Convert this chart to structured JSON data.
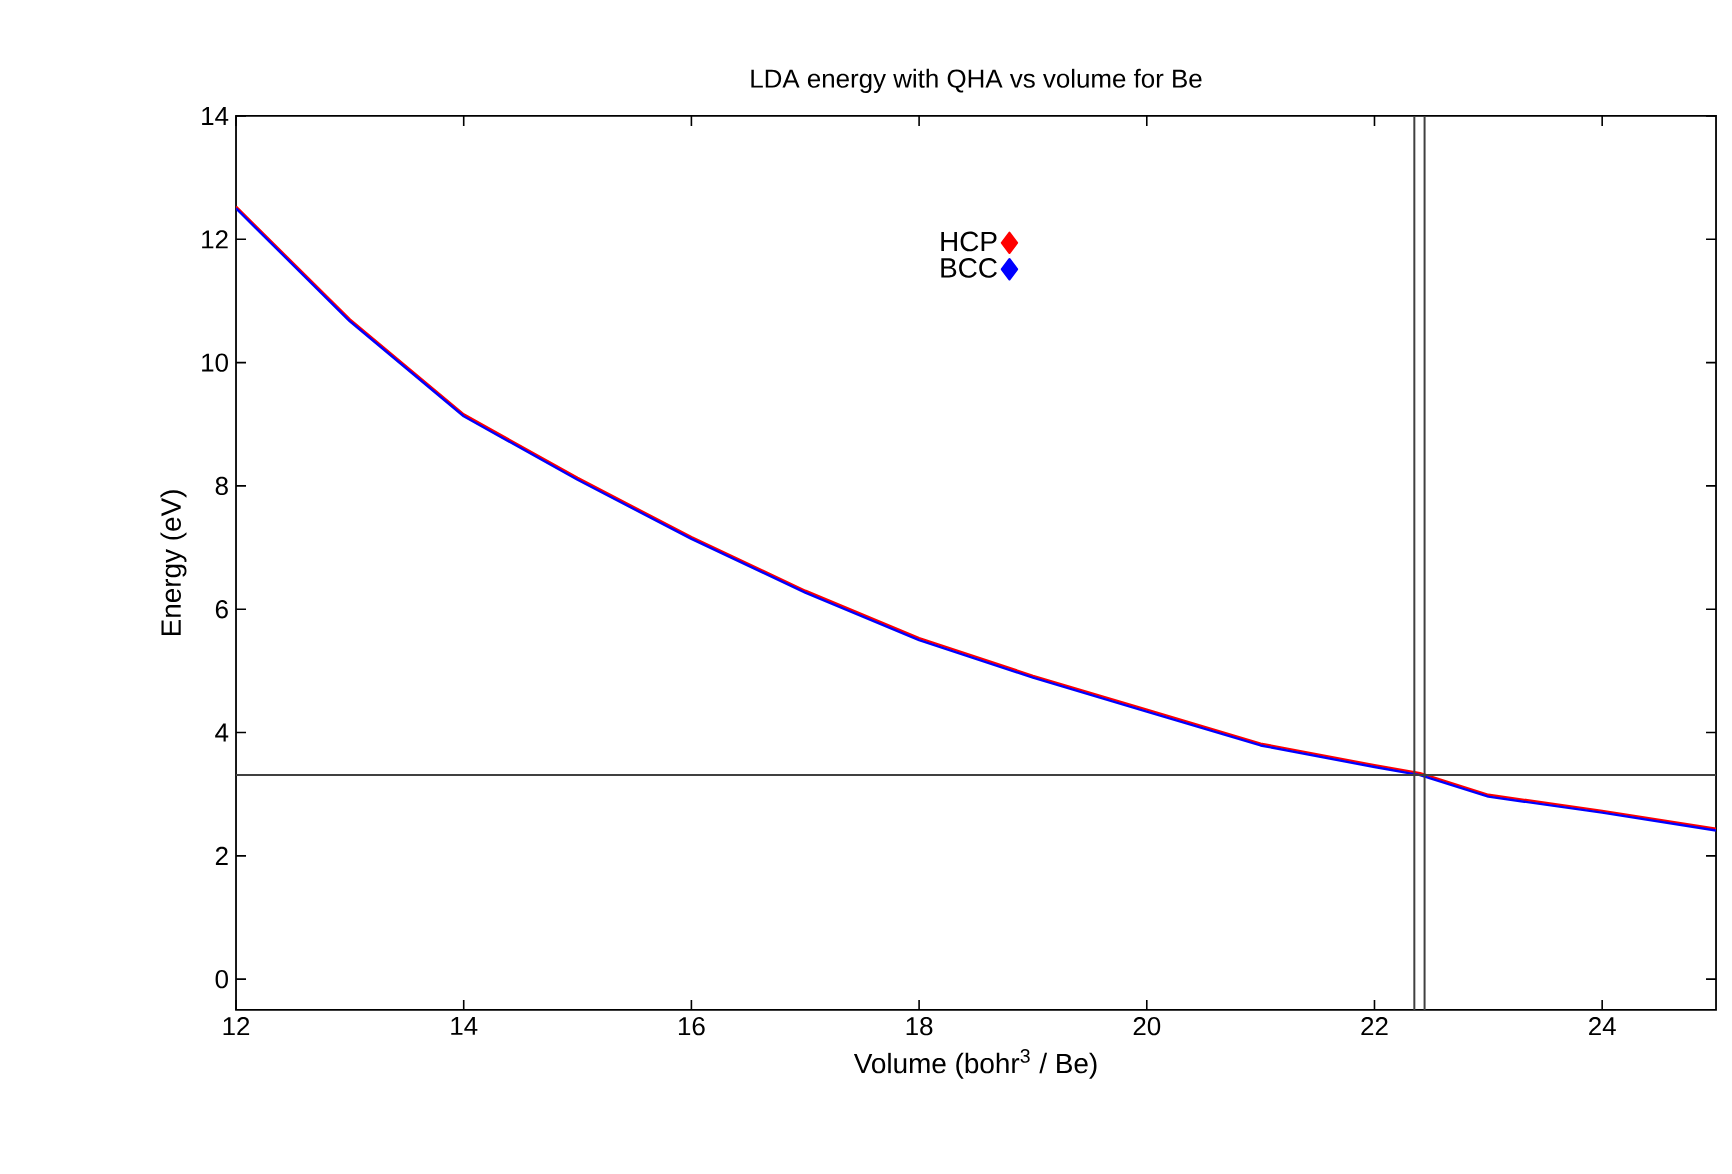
{
  "chart_data": {
    "type": "line",
    "title": "LDA energy with QHA vs volume for Be",
    "xlabel": "Volume (bohr$^{3}$ / Be)",
    "ylabel": "Energy (eV)",
    "x": [
      12,
      13,
      14,
      15,
      16,
      17,
      18,
      19,
      20,
      21,
      22,
      22.4,
      23,
      24,
      25
    ],
    "series": [
      {
        "name": "HCP",
        "color": "#ff0000",
        "values": [
          12.53,
          10.7,
          9.16,
          8.13,
          7.17,
          6.3,
          5.53,
          4.92,
          4.37,
          3.82,
          3.47,
          3.34,
          2.99,
          2.73,
          2.44
        ]
      },
      {
        "name": "BCC",
        "color": "#0000ff",
        "values": [
          12.5,
          10.67,
          9.13,
          8.1,
          7.14,
          6.27,
          5.5,
          4.89,
          4.34,
          3.79,
          3.44,
          3.31,
          2.96,
          2.7,
          2.41
        ]
      }
    ],
    "xlim": [
      12,
      25
    ],
    "xticks": [
      12,
      14,
      16,
      18,
      20,
      22,
      24
    ],
    "ylim": [
      -0.5,
      14
    ],
    "yticks": [
      0,
      2,
      4,
      6,
      8,
      10,
      12,
      14
    ],
    "ref_lines": [
      {
        "axis": "y",
        "value": 3.31,
        "color": "#404040"
      },
      {
        "axis": "x",
        "value": 22.35,
        "color": "#404040"
      },
      {
        "axis": "x",
        "value": 22.44,
        "color": "#404040"
      }
    ],
    "legend": "top",
    "line_style": "solid",
    "grid": false
  }
}
